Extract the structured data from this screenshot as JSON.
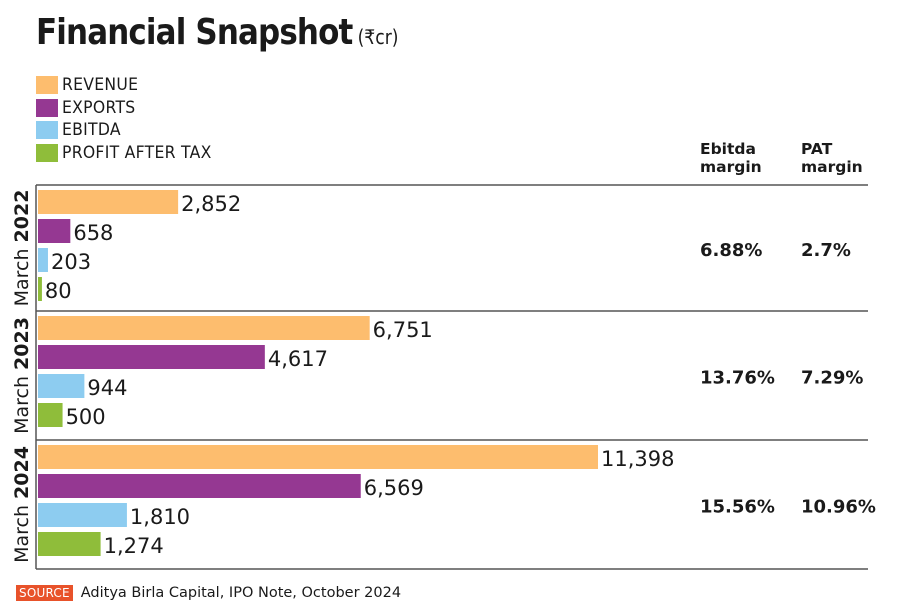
{
  "header": {
    "title": "Financial Snapshot",
    "unit": "(₹cr)"
  },
  "legend": [
    {
      "label": "REVENUE",
      "color": "#fdbd6e"
    },
    {
      "label": "EXPORTS",
      "color": "#953892"
    },
    {
      "label": "EBITDA",
      "color": "#8dccf0"
    },
    {
      "label": "PROFIT AFTER TAX",
      "color": "#8fbd3a"
    }
  ],
  "columns": {
    "ebitda_margin": "Ebitda\nmargin",
    "pat_margin": "PAT\nmargin",
    "ebitda_line1": "Ebitda",
    "ebitda_line2": "margin",
    "pat_line1": "PAT",
    "pat_line2": "margin"
  },
  "source": {
    "badge": "SOURCE",
    "text": "Aditya Birla Capital, IPO Note, October 2024"
  },
  "chart_data": {
    "type": "bar",
    "orientation": "horizontal",
    "title": "Financial Snapshot",
    "subtitle": "(₹cr)",
    "categories": [
      {
        "prefix": "March",
        "year": "2022"
      },
      {
        "prefix": "March",
        "year": "2023"
      },
      {
        "prefix": "March",
        "year": "2024"
      }
    ],
    "series": [
      {
        "name": "REVENUE",
        "color": "#fdbd6e",
        "values": [
          2852,
          6751,
          11398
        ],
        "labels": [
          "2,852",
          "6,751",
          "11,398"
        ]
      },
      {
        "name": "EXPORTS",
        "color": "#953892",
        "values": [
          658,
          4617,
          6569
        ],
        "labels": [
          "658",
          "4,617",
          "6,569"
        ]
      },
      {
        "name": "EBITDA",
        "color": "#8dccf0",
        "values": [
          203,
          944,
          1810
        ],
        "labels": [
          "203",
          "944",
          "1,810"
        ]
      },
      {
        "name": "PROFIT AFTER TAX",
        "color": "#8fbd3a",
        "values": [
          80,
          500,
          1274
        ],
        "labels": [
          "80",
          "500",
          "1,274"
        ]
      }
    ],
    "margins": {
      "ebitda_margin": [
        "6.88%",
        "13.76%",
        "15.56%"
      ],
      "pat_margin": [
        "2.7%",
        "7.29%",
        "10.96%"
      ]
    },
    "xmax": 11398,
    "legend_position": "top-left",
    "grid": false
  }
}
